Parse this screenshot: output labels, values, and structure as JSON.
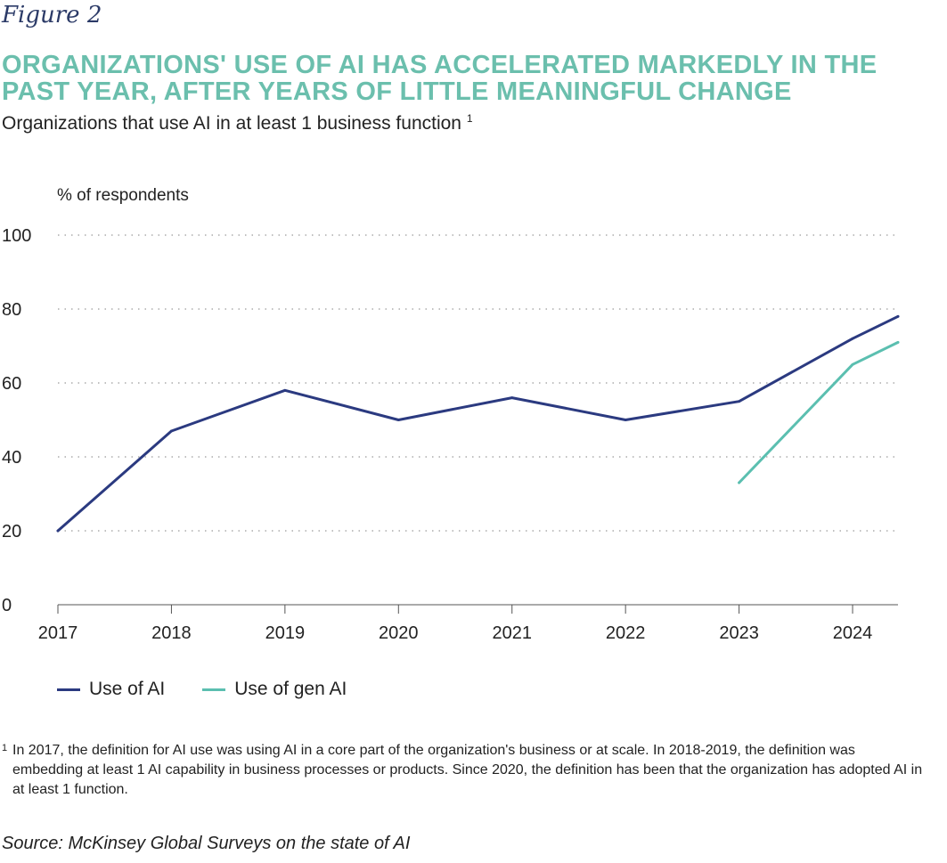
{
  "figure_label": "Figure 2",
  "title": "Organizations' use of AI has accelerated markedly in the past year, after years of little meaningful change",
  "subtitle": "Organizations that use AI in at least 1 business function",
  "subtitle_footnote_marker": "1",
  "footnote": {
    "marker": "1",
    "text": "In 2017, the definition for AI use was using AI in a core part of the organization's business or at scale. In 2018-2019, the definition was embedding at least 1 AI capability in business processes or products. Since 2020, the definition has been that the organization has adopted AI in at least 1 function."
  },
  "source": "Source: McKinsey Global Surveys on the state of AI",
  "colors": {
    "title": "#6bbfad",
    "ai": "#2b3a80",
    "gen_ai": "#5bbfb0"
  },
  "chart_data": {
    "type": "line",
    "title": "Organizations' use of AI has accelerated markedly in the past year, after years of little meaningful change",
    "xlabel": "",
    "ylabel": "% of respondents",
    "x_ticks": [
      "2017",
      "2018",
      "2019",
      "2020",
      "2021",
      "2022",
      "2023",
      "2024"
    ],
    "y_ticks": [
      0,
      20,
      40,
      60,
      80,
      100
    ],
    "xlim": [
      2017,
      2024.4
    ],
    "ylim": [
      0,
      100
    ],
    "grid": "horizontal dotted",
    "legend_position": "bottom-left",
    "series": [
      {
        "name": "Use of AI",
        "color": "#2b3a80",
        "x": [
          2017,
          2018,
          2019,
          2020,
          2021,
          2022,
          2023,
          2024,
          2024.4
        ],
        "y": [
          20,
          47,
          58,
          50,
          56,
          50,
          55,
          72,
          78
        ]
      },
      {
        "name": "Use of gen AI",
        "color": "#5bbfb0",
        "x": [
          2023,
          2024,
          2024.4
        ],
        "y": [
          33,
          65,
          71
        ]
      }
    ]
  }
}
